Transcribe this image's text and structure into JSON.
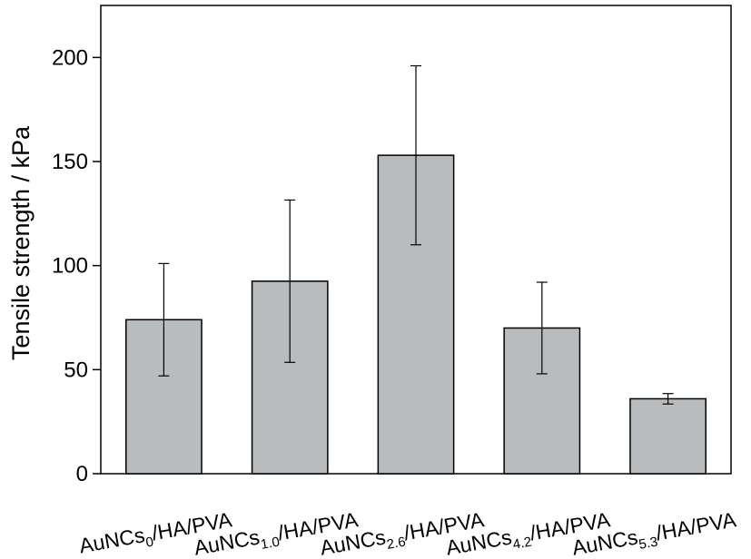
{
  "chart_data": {
    "type": "bar",
    "title": "",
    "xlabel": "",
    "ylabel": "Tensile strength / kPa",
    "ylim": [
      0,
      225
    ],
    "yticks": [
      0,
      50,
      100,
      150,
      200
    ],
    "grid": false,
    "legend": "none",
    "categories": [
      {
        "base": "AuNCs",
        "sub": "0",
        "suffix": "/HA/PVA"
      },
      {
        "base": "AuNCs",
        "sub": "1.0",
        "suffix": "/HA/PVA"
      },
      {
        "base": "AuNCs",
        "sub": "2.6",
        "suffix": "/HA/PVA"
      },
      {
        "base": "AuNCs",
        "sub": "4.2",
        "suffix": "/HA/PVA"
      },
      {
        "base": "AuNCs",
        "sub": "5.3",
        "suffix": "/HA/PVA"
      }
    ],
    "values": [
      74,
      92.5,
      153,
      70,
      36
    ],
    "errors": [
      27,
      39,
      43,
      22,
      2.5
    ],
    "colors": {
      "bar_fill": "#b9bcbe",
      "bar_stroke": "#000000",
      "axis": "#000000",
      "error_bar": "#000000"
    }
  }
}
